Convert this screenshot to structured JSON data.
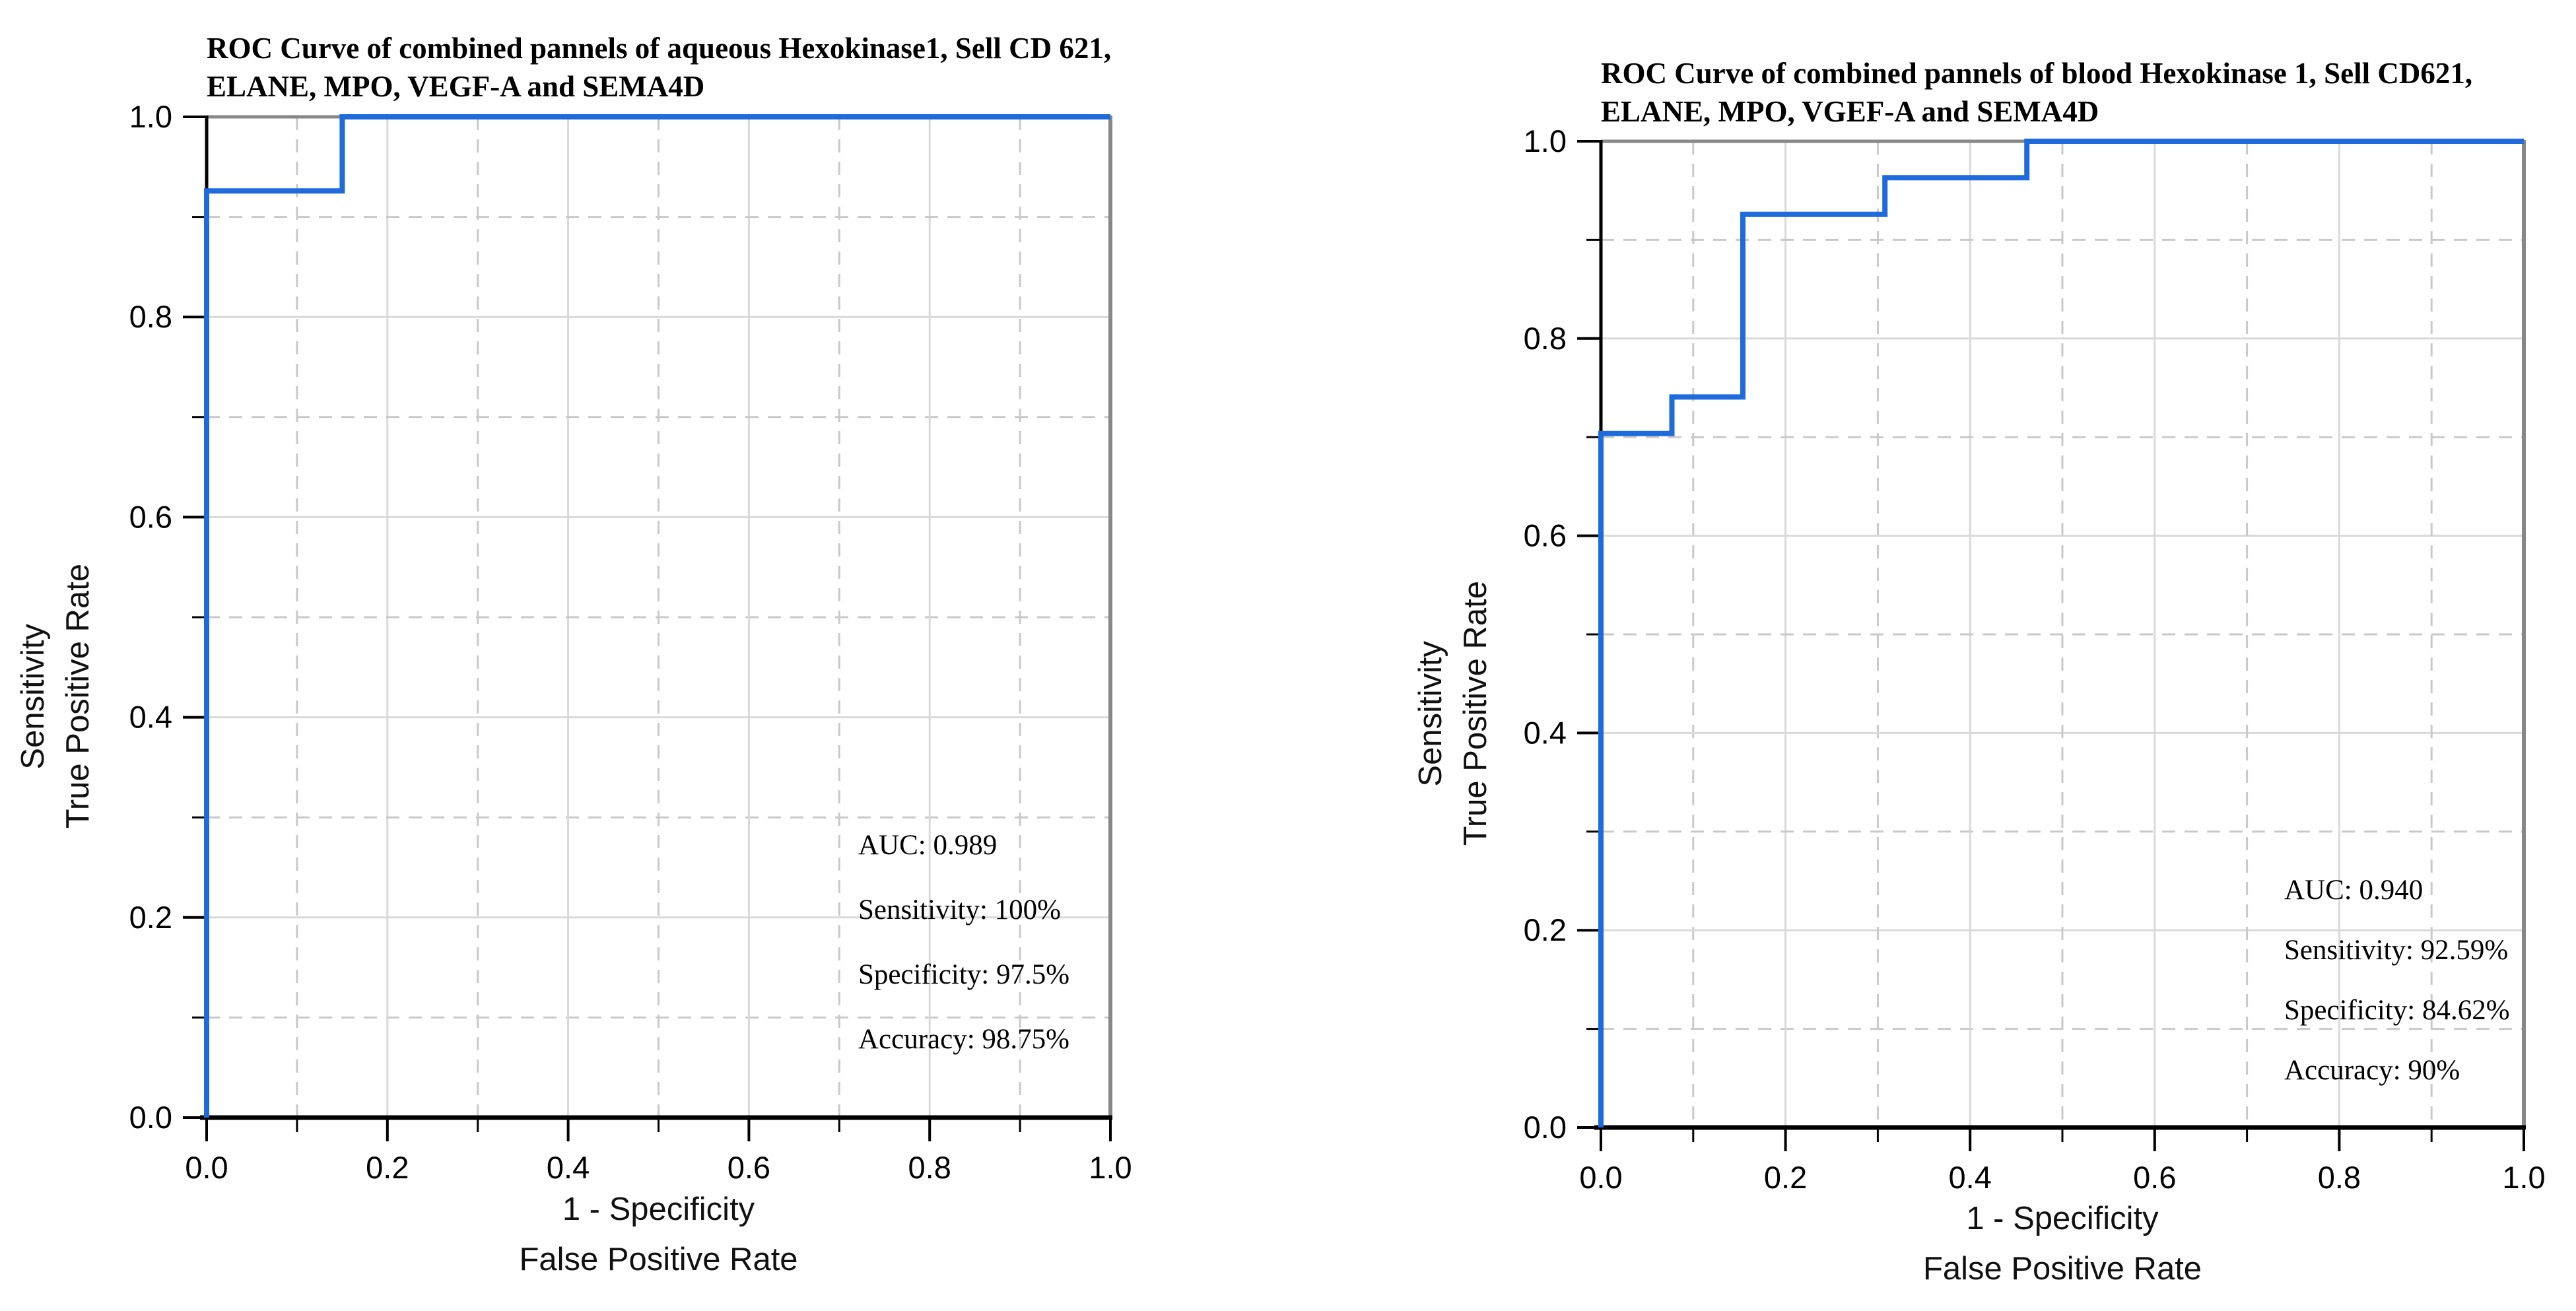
{
  "page": {
    "background": "#ffffff"
  },
  "colors": {
    "curve": "#1f6bdb",
    "grid_major": "#d9d9d9",
    "grid_minor": "#c9c9c9",
    "spine_dark": "#000000",
    "spine_gray": "#878787",
    "tick": "#000000",
    "text": "#000000"
  },
  "chart_data": [
    {
      "type": "line",
      "subtype": "roc-step-curve",
      "title": "ROC Curve of combined pannels of aqueous Hexokinase1, Sell CD 621, ELANE, MPO, VEGF-A and SEMA4D",
      "title_line1": "ROC Curve of combined pannels of aqueous Hexokinase1, Sell CD 621,",
      "title_line2": "ELANE, MPO, VEGF-A and SEMA4D",
      "ylabel": "Sensitivity / True Positive Rate",
      "ylabel_line1": "Sensitivity",
      "ylabel_line2": "True Positive Rate",
      "xlabel": "1 - Specificity / False Positive Rate",
      "xlabel_line1": "1 - Specificity",
      "xlabel_line2": "False Positive Rate",
      "xlim": [
        0,
        1
      ],
      "ylim": [
        0,
        1
      ],
      "x_ticks": [
        0.0,
        0.2,
        0.4,
        0.6,
        0.8,
        1.0
      ],
      "y_ticks": [
        0.0,
        0.2,
        0.4,
        0.6,
        0.8,
        1.0
      ],
      "x_tick_labels": [
        "0.0",
        "0.2",
        "0.4",
        "0.6",
        "0.8",
        "1.0"
      ],
      "y_tick_labels": [
        "0.0",
        "0.2",
        "0.4",
        "0.6",
        "0.8",
        "1.0"
      ],
      "minor_ticks": [
        0.1,
        0.3,
        0.5,
        0.7,
        0.9
      ],
      "grid": {
        "major_style": "solid",
        "minor_style": "dashed",
        "on": true
      },
      "legend": "none",
      "series": [
        {
          "name": "ROC curve (aqueous panel)",
          "points": [
            [
              0,
              0
            ],
            [
              0,
              0.9259
            ],
            [
              0.15,
              0.9259
            ],
            [
              0.15,
              1.0
            ],
            [
              1.0,
              1.0
            ]
          ]
        }
      ],
      "metrics": {
        "auc": 0.989,
        "sensitivity_pct": 100,
        "specificity_pct": 97.5,
        "accuracy_pct": 98.75
      },
      "annotations": [
        "AUC: 0.989",
        "Sensitivity: 100%",
        "Specificity: 97.5%",
        "Accuracy: 98.75%"
      ]
    },
    {
      "type": "line",
      "subtype": "roc-step-curve",
      "title": "ROC Curve of combined pannels of blood Hexokinase 1, Sell CD621, ELANE, MPO, VGEF-A and SEMA4D",
      "title_line1": "ROC Curve of combined pannels of blood Hexokinase 1, Sell CD621,",
      "title_line2": "ELANE, MPO, VGEF-A and SEMA4D",
      "ylabel": "Sensitivity / True Positive Rate",
      "ylabel_line1": "Sensitivity",
      "ylabel_line2": "True Positive Rate",
      "xlabel": "1 - Specificity / False Positive Rate",
      "xlabel_line1": "1 - Specificity",
      "xlabel_line2": "False Positive Rate",
      "xlim": [
        0,
        1
      ],
      "ylim": [
        0,
        1
      ],
      "x_ticks": [
        0.0,
        0.2,
        0.4,
        0.6,
        0.8,
        1.0
      ],
      "y_ticks": [
        0.0,
        0.2,
        0.4,
        0.6,
        0.8,
        1.0
      ],
      "x_tick_labels": [
        "0.0",
        "0.2",
        "0.4",
        "0.6",
        "0.8",
        "1.0"
      ],
      "y_tick_labels": [
        "0.0",
        "0.2",
        "0.4",
        "0.6",
        "0.8",
        "1.0"
      ],
      "minor_ticks": [
        0.1,
        0.3,
        0.5,
        0.7,
        0.9
      ],
      "grid": {
        "major_style": "solid",
        "minor_style": "dashed",
        "on": true
      },
      "legend": "none",
      "series": [
        {
          "name": "ROC curve (blood panel)",
          "points": [
            [
              0,
              0
            ],
            [
              0,
              0.7037
            ],
            [
              0.0769,
              0.7037
            ],
            [
              0.0769,
              0.7407
            ],
            [
              0.1538,
              0.7407
            ],
            [
              0.1538,
              0.9259
            ],
            [
              0.3077,
              0.9259
            ],
            [
              0.3077,
              0.963
            ],
            [
              0.4615,
              0.963
            ],
            [
              0.4615,
              1.0
            ],
            [
              1.0,
              1.0
            ]
          ]
        }
      ],
      "metrics": {
        "auc": 0.94,
        "sensitivity_pct": 92.59,
        "specificity_pct": 84.62,
        "accuracy_pct": 90
      },
      "annotations": [
        "AUC: 0.940",
        "Sensitivity: 92.59%",
        "Specificity: 84.62%",
        "Accuracy: 90%"
      ]
    }
  ]
}
